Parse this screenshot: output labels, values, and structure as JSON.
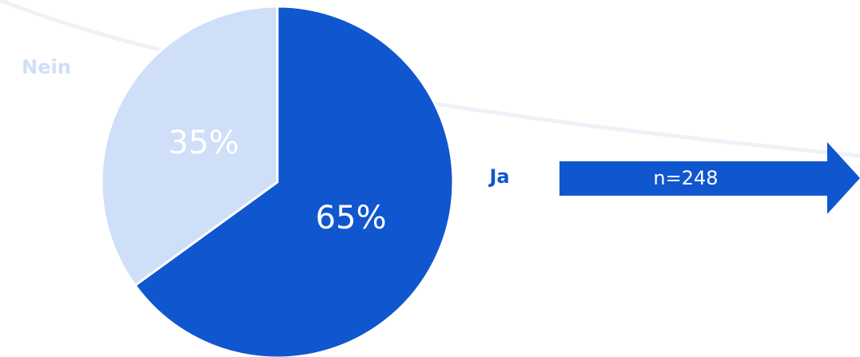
{
  "chart_data": {
    "type": "pie",
    "categories": [
      "Ja",
      "Nein"
    ],
    "values": [
      65,
      35
    ],
    "value_labels": [
      "65%",
      "35%"
    ],
    "colors": [
      "#1056cf",
      "#cfdff7"
    ],
    "annotation": "n=248"
  }
}
